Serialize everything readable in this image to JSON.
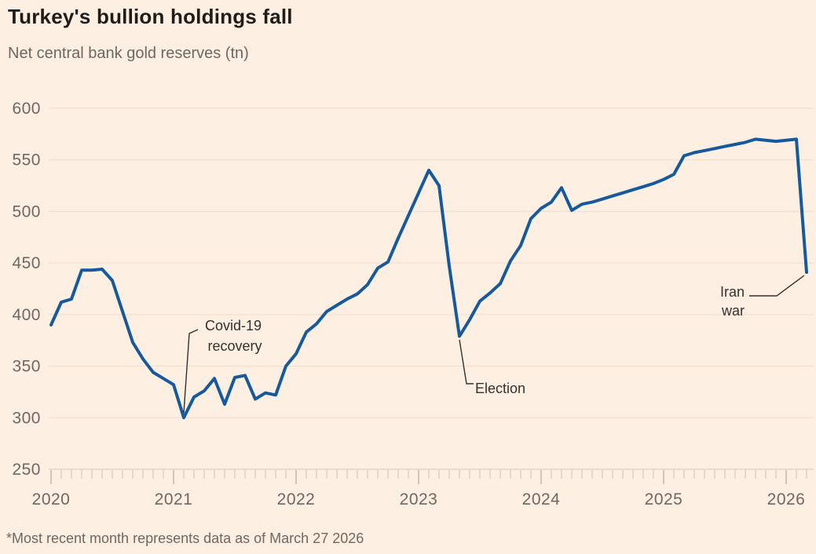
{
  "chart_data": {
    "type": "line",
    "title": "Turkey's bullion holdings fall",
    "subtitle": "Net central bank gold reserves (tn)",
    "footnote": "*Most recent month represents data as of March 27 2026",
    "x_start": "2020-01",
    "x_end": "2026-03",
    "x_year_labels": [
      "2020",
      "2021",
      "2022",
      "2023",
      "2024",
      "2025",
      "2026"
    ],
    "y_ticks": [
      250,
      300,
      350,
      400,
      450,
      500,
      550,
      600
    ],
    "ylim": [
      250,
      600
    ],
    "grid": true,
    "legend": "none",
    "series": [
      {
        "name": "Net central bank gold reserves (tonnes)",
        "frequency": "monthly",
        "values": [
          390,
          412,
          415,
          443,
          443,
          444,
          433,
          403,
          373,
          357,
          344,
          338,
          332,
          300,
          320,
          326,
          338,
          313,
          339,
          341,
          318,
          324,
          322,
          350,
          362,
          383,
          391,
          403,
          409,
          415,
          420,
          429,
          445,
          451,
          474,
          496,
          518,
          540,
          525,
          447,
          379,
          395,
          413,
          421,
          430,
          452,
          467,
          493,
          503,
          509,
          523,
          501,
          507,
          509,
          512,
          515,
          518,
          521,
          524,
          527,
          531,
          536,
          554,
          557,
          559,
          561,
          563,
          565,
          567,
          570,
          569,
          568,
          569,
          570,
          441
        ]
      }
    ],
    "annotations": [
      {
        "id": "covid-recovery",
        "lines": [
          "Covid-19",
          "recovery"
        ],
        "target": {
          "month": "2021-02",
          "value": 300
        }
      },
      {
        "id": "election",
        "lines": [
          "Election"
        ],
        "target": {
          "month": "2023-05",
          "value": 379
        }
      },
      {
        "id": "iran-war",
        "lines": [
          "Iran",
          "war"
        ],
        "target": {
          "month": "2026-03",
          "value": 441
        }
      }
    ],
    "colors": {
      "line": "#16599e",
      "background": "#fdf0e3",
      "grid": "#f0ddcb",
      "baseline": "#d8c7b7",
      "minor_tick": "#d0c0b1",
      "year_tick": "#a89a8d",
      "axis_text": "#6e6762",
      "annotation": "#33302e",
      "title_text": "#1f1c1a",
      "subtitle_text": "#6e6762"
    }
  }
}
